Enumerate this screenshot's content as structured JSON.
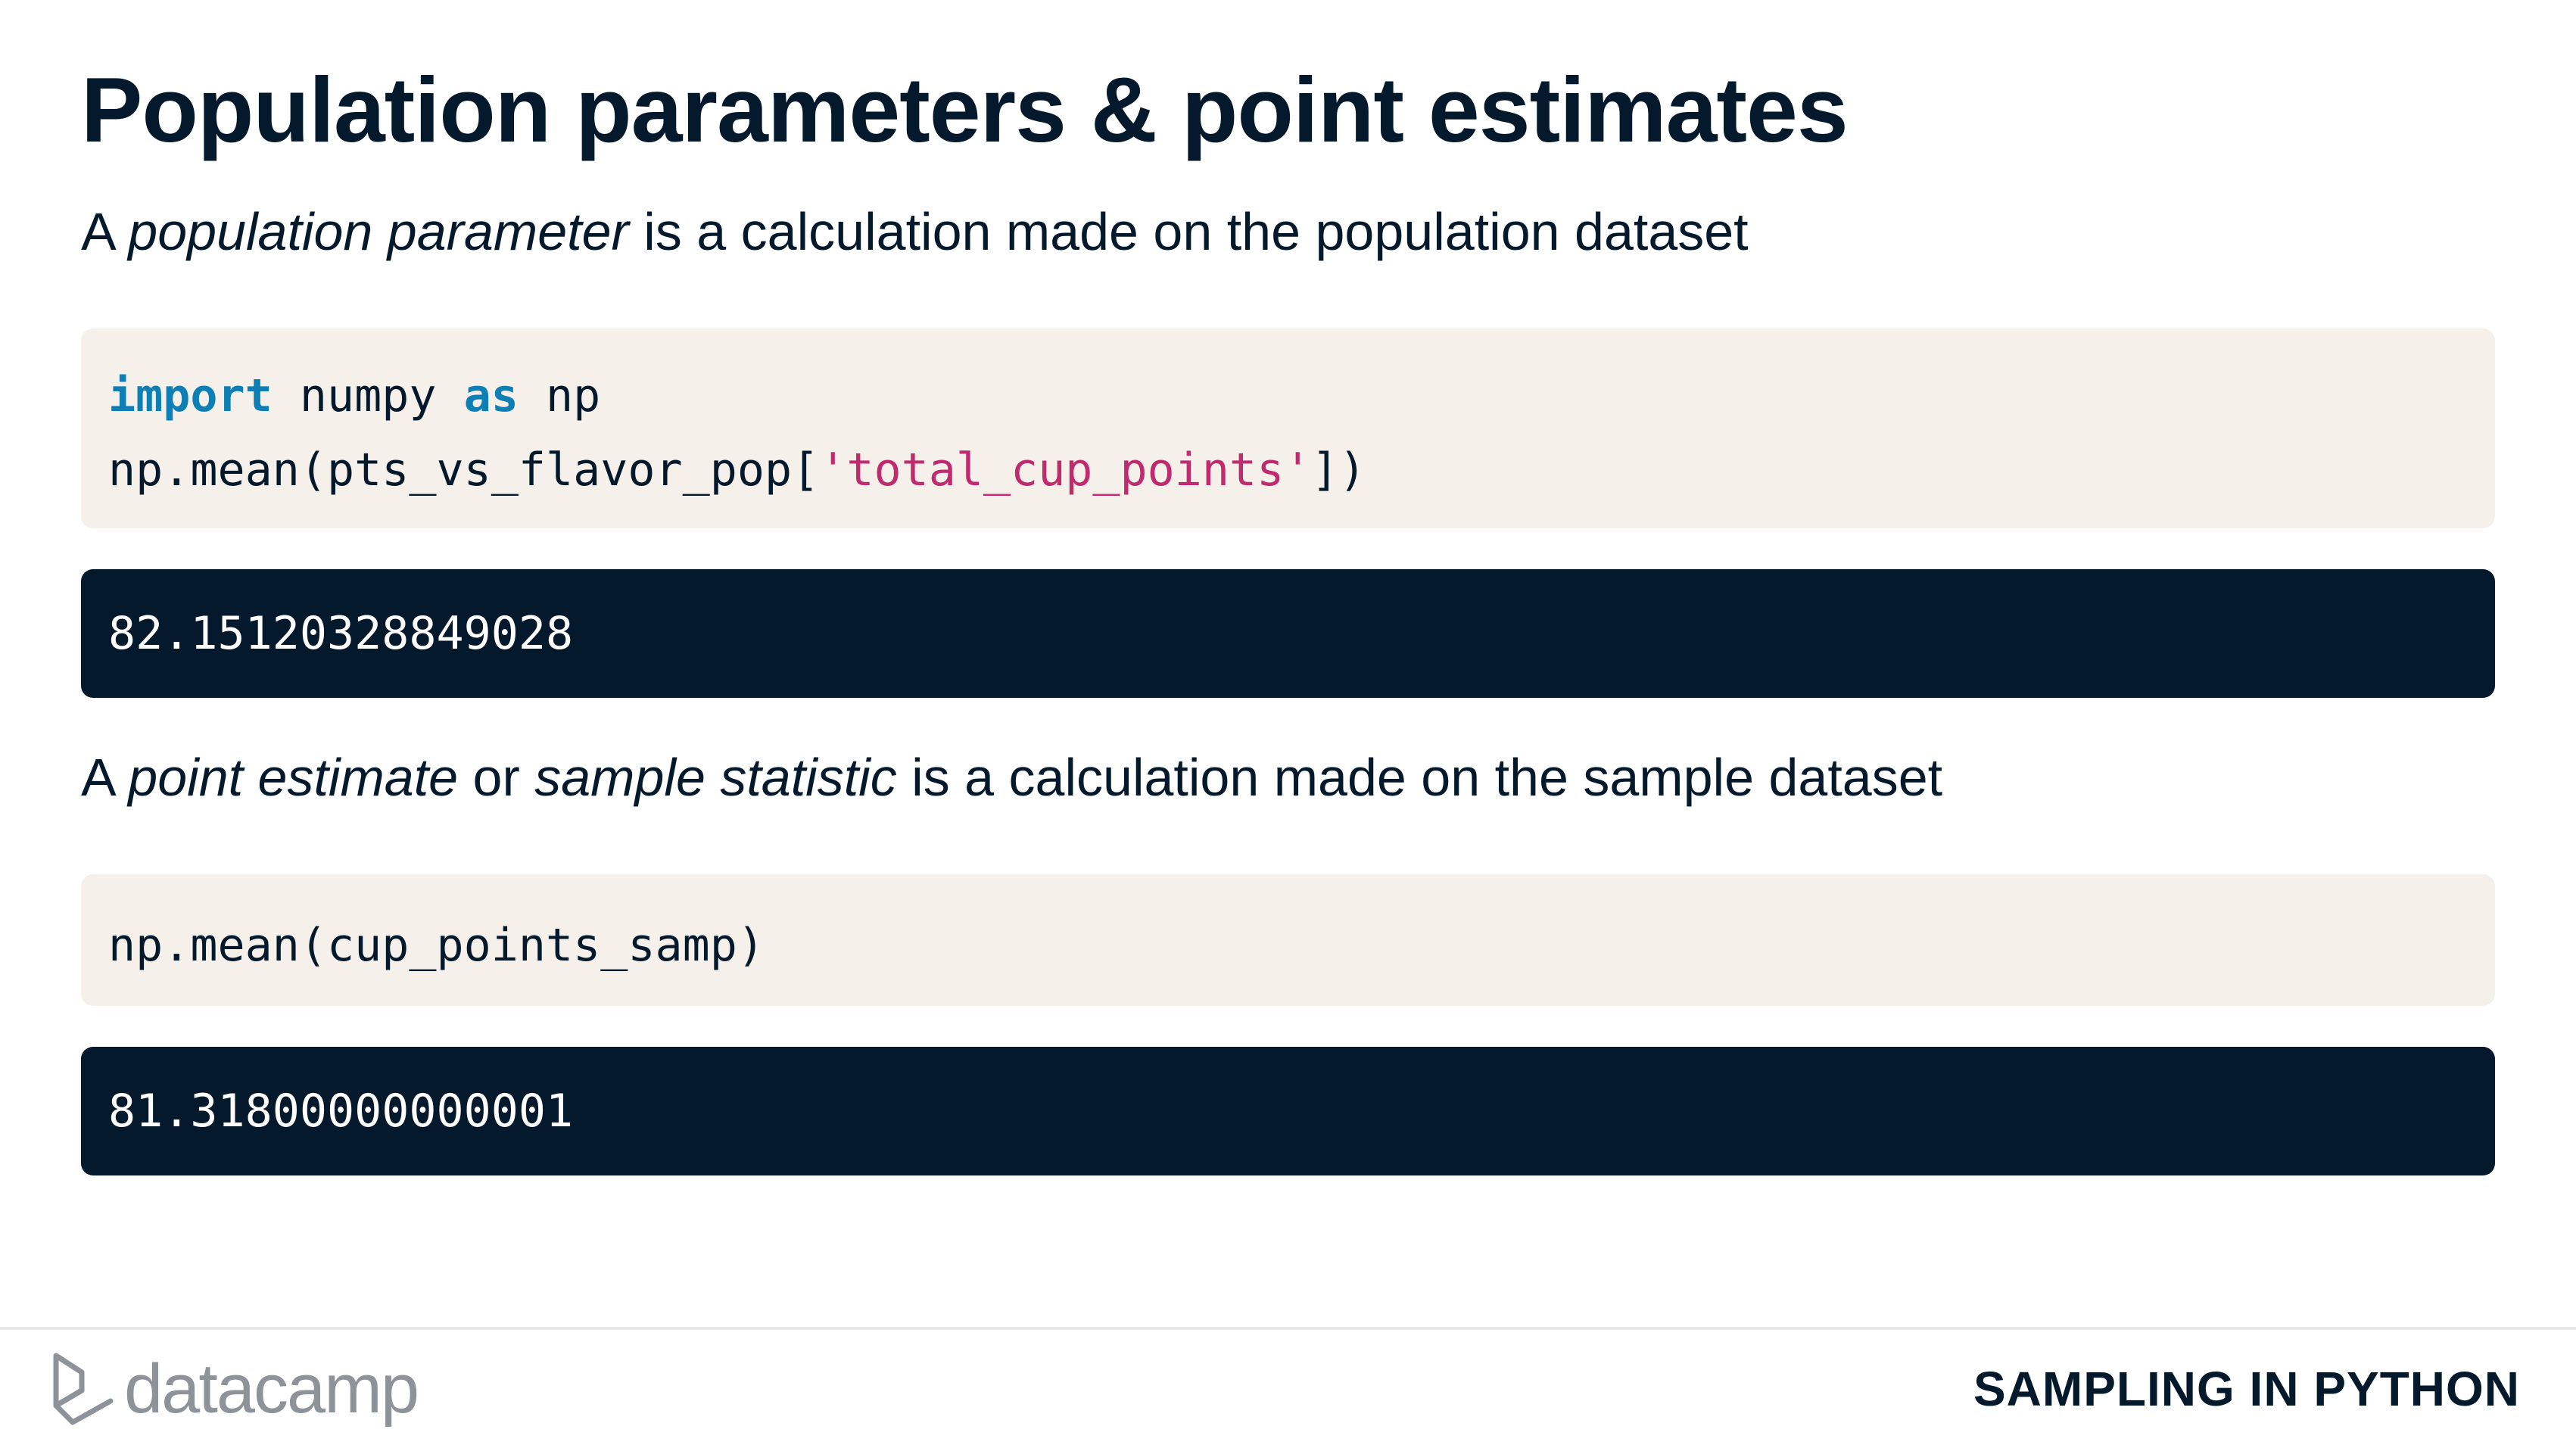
{
  "slide": {
    "title": "Population parameters & point estimates",
    "paragraph_1": {
      "prefix": "A ",
      "term": "population parameter",
      "suffix": " is a calculation made on the population dataset"
    },
    "code_1": {
      "line_1": {
        "kw_import": "import",
        "module": " numpy ",
        "kw_as": "as",
        "alias": " np"
      },
      "line_2": {
        "call_open": "np.mean(pts_vs_flavor_pop[",
        "string": "'total_cup_points'",
        "call_close": "])"
      }
    },
    "output_1": "82.15120328849028",
    "paragraph_2": {
      "prefix": "A ",
      "term_1": "point estimate",
      "middle": " or ",
      "term_2": "sample statistic",
      "suffix": " is a calculation made on the sample dataset"
    },
    "code_2": {
      "line_1": "np.mean(cup_points_samp)"
    },
    "output_2": "81.31800000000001"
  },
  "footer": {
    "brand_name": "datacamp",
    "brand_icon": "datacamp-logo-icon",
    "course_title": "SAMPLING IN PYTHON"
  },
  "colors": {
    "text": "#05192d",
    "code_background": "#f5f1ea",
    "output_background": "#05192d",
    "keyword": "#0e7fb5",
    "string": "#bf2b6e",
    "brand_gray": "#8e939a"
  }
}
